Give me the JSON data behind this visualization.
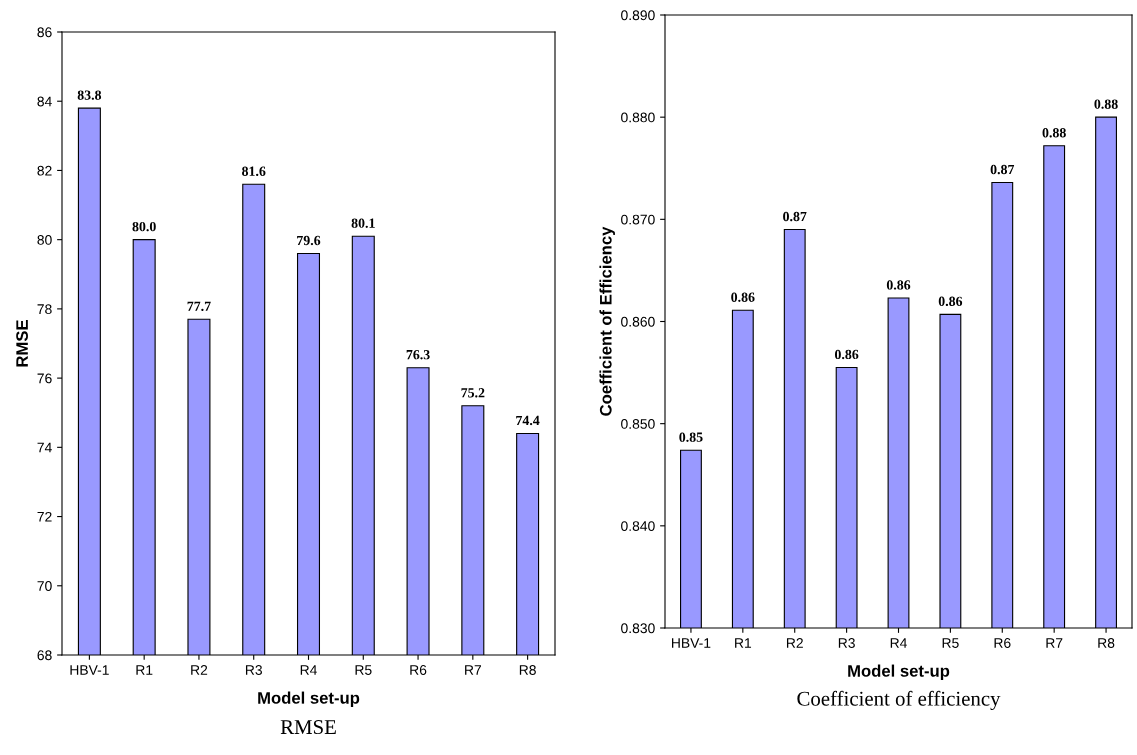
{
  "chart_data": [
    {
      "type": "bar",
      "title": "RMSE",
      "xlabel": "Model set-up",
      "ylabel": "RMSE",
      "categories": [
        "HBV-1",
        "R1",
        "R2",
        "R3",
        "R4",
        "R5",
        "R6",
        "R7",
        "R8"
      ],
      "values": [
        83.8,
        80.0,
        77.7,
        81.6,
        79.6,
        80.1,
        76.3,
        75.2,
        74.4
      ],
      "value_labels": [
        "83.8",
        "80.0",
        "77.7",
        "81.6",
        "79.6",
        "80.1",
        "76.3",
        "75.2",
        "74.4"
      ],
      "color": "#9999ff",
      "ylim": [
        68,
        86
      ],
      "yticks": [
        68,
        70,
        72,
        74,
        76,
        78,
        80,
        82,
        84,
        86
      ],
      "grid": false,
      "legend": false
    },
    {
      "type": "bar",
      "title": "Coefficient of efficiency",
      "xlabel": "Model set-up",
      "ylabel": "Coefficient of Efficiency",
      "categories": [
        "HBV-1",
        "R1",
        "R2",
        "R3",
        "R4",
        "R5",
        "R6",
        "R7",
        "R8"
      ],
      "values": [
        0.8474,
        0.8611,
        0.869,
        0.8555,
        0.8623,
        0.8607,
        0.8736,
        0.8772,
        0.88
      ],
      "value_labels": [
        "0.85",
        "0.86",
        "0.87",
        "0.86",
        "0.86",
        "0.86",
        "0.87",
        "0.88",
        "0.88"
      ],
      "color": "#9999ff",
      "ylim": [
        0.83,
        0.89
      ],
      "yticks": [
        {
          "value": 0.83,
          "label": "0.830"
        },
        {
          "value": 0.84,
          "label": "0.840"
        },
        {
          "value": 0.85,
          "label": "0.850"
        },
        {
          "value": 0.86,
          "label": "0.860"
        },
        {
          "value": 0.87,
          "label": "0.870"
        },
        {
          "value": 0.88,
          "label": "0.880"
        },
        {
          "value": 0.89,
          "label": "0.890"
        }
      ],
      "grid": false,
      "legend": false
    }
  ]
}
